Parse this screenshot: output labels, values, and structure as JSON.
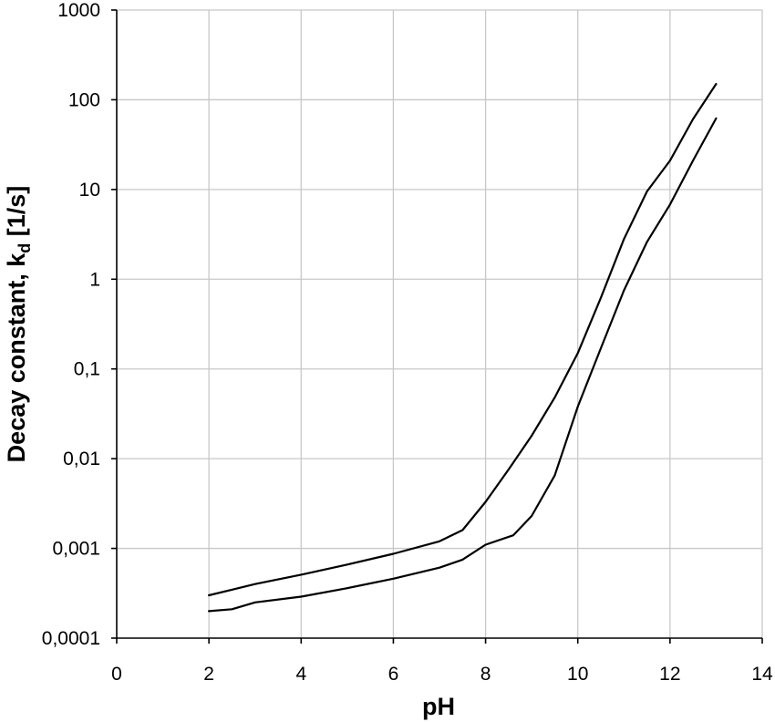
{
  "chart_data": {
    "type": "line",
    "title": "",
    "xlabel": "pH",
    "ylabel_main": "Decay constant, k",
    "ylabel_sub": "d",
    "ylabel_tail": " [1/s]",
    "xlim": [
      0,
      14
    ],
    "ylim": [
      0.0001,
      1000
    ],
    "y_scale": "log",
    "grid": true,
    "x_ticks": [
      "0",
      "2",
      "4",
      "6",
      "8",
      "10",
      "12",
      "14"
    ],
    "x_tick_values": [
      0,
      2,
      4,
      6,
      8,
      10,
      12,
      14
    ],
    "y_ticks": [
      "0,0001",
      "0,001",
      "0,01",
      "0,1",
      "1",
      "10",
      "100",
      "1000"
    ],
    "y_tick_values": [
      0.0001,
      0.001,
      0.01,
      0.1,
      1,
      10,
      100,
      1000
    ],
    "series": [
      {
        "line_color": "#000000",
        "x": [
          2,
          3,
          4,
          5,
          6,
          7,
          7.5,
          8,
          8.5,
          9,
          9.5,
          10,
          10.5,
          11,
          11.5,
          12,
          12.5,
          13
        ],
        "y": [
          0.0003,
          0.0004,
          0.00051,
          0.00066,
          0.00087,
          0.0012,
          0.0016,
          0.0033,
          0.0076,
          0.018,
          0.048,
          0.15,
          0.62,
          2.8,
          9.5,
          21,
          61,
          150
        ]
      },
      {
        "line_color": "#000000",
        "x": [
          2,
          2.5,
          3,
          4,
          5,
          6,
          7,
          7.5,
          8,
          8.6,
          9,
          9.5,
          10,
          10.5,
          11,
          11.5,
          12,
          12.5,
          13
        ],
        "y": [
          0.0002,
          0.00021,
          0.00025,
          0.00029,
          0.00036,
          0.00046,
          0.00061,
          0.00075,
          0.0011,
          0.0014,
          0.0023,
          0.0065,
          0.038,
          0.17,
          0.75,
          2.6,
          6.8,
          21,
          62
        ]
      }
    ]
  }
}
